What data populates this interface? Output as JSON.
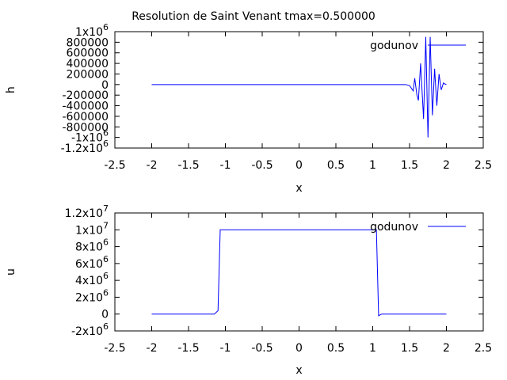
{
  "chart_data": [
    {
      "type": "line",
      "title": "Resolution de Saint Venant tmax=0.500000",
      "xlabel": "x",
      "ylabel": "h",
      "xlim": [
        -2.5,
        2.5
      ],
      "ylim": [
        -1200000,
        1000000
      ],
      "x_ticks": [
        -2.5,
        -2,
        -1.5,
        -1,
        -0.5,
        0,
        0.5,
        1,
        1.5,
        2,
        2.5
      ],
      "x_tick_labels": [
        "-2.5",
        "-2",
        "-1.5",
        "-1",
        "-0.5",
        "0",
        "0.5",
        "1",
        "1.5",
        "2",
        "2.5"
      ],
      "y_ticks": [
        -1200000,
        -1000000,
        -800000,
        -600000,
        -400000,
        -200000,
        0,
        200000,
        400000,
        600000,
        800000,
        1000000
      ],
      "y_tick_labels": [
        {
          "base": "-1.2x10",
          "exp": "6"
        },
        {
          "base": "-1x10",
          "exp": "6"
        },
        {
          "base": "-800000",
          "exp": ""
        },
        {
          "base": "-600000",
          "exp": ""
        },
        {
          "base": "-400000",
          "exp": ""
        },
        {
          "base": "-200000",
          "exp": ""
        },
        {
          "base": "0",
          "exp": ""
        },
        {
          "base": "200000",
          "exp": ""
        },
        {
          "base": "400000",
          "exp": ""
        },
        {
          "base": "600000",
          "exp": ""
        },
        {
          "base": "800000",
          "exp": ""
        },
        {
          "base": "1x10",
          "exp": "6"
        }
      ],
      "legend": "top-right",
      "grid": false,
      "series": [
        {
          "name": "godunov",
          "color": "#0000ff",
          "points": [
            [
              -2.0,
              0
            ],
            [
              1.3,
              0
            ],
            [
              1.45,
              0
            ],
            [
              1.5,
              -20000
            ],
            [
              1.55,
              -120000
            ],
            [
              1.57,
              120000
            ],
            [
              1.6,
              -200000
            ],
            [
              1.62,
              -300000
            ],
            [
              1.65,
              400000
            ],
            [
              1.69,
              -650000
            ],
            [
              1.72,
              900000
            ],
            [
              1.75,
              -1000000
            ],
            [
              1.78,
              900000
            ],
            [
              1.81,
              -580000
            ],
            [
              1.84,
              300000
            ],
            [
              1.87,
              -400000
            ],
            [
              1.9,
              200000
            ],
            [
              1.93,
              -100000
            ],
            [
              1.96,
              30000
            ],
            [
              1.98,
              10000
            ],
            [
              2.0,
              0
            ]
          ]
        }
      ]
    },
    {
      "type": "line",
      "title": "",
      "xlabel": "x",
      "ylabel": "u",
      "xlim": [
        -2.5,
        2.5
      ],
      "ylim": [
        -2000000,
        12000000
      ],
      "x_ticks": [
        -2.5,
        -2,
        -1.5,
        -1,
        -0.5,
        0,
        0.5,
        1,
        1.5,
        2,
        2.5
      ],
      "x_tick_labels": [
        "-2.5",
        "-2",
        "-1.5",
        "-1",
        "-0.5",
        "0",
        "0.5",
        "1",
        "1.5",
        "2",
        "2.5"
      ],
      "y_ticks": [
        -2000000,
        0,
        2000000,
        4000000,
        6000000,
        8000000,
        10000000,
        12000000
      ],
      "y_tick_labels": [
        {
          "base": "-2x10",
          "exp": "6"
        },
        {
          "base": "0",
          "exp": ""
        },
        {
          "base": "2x10",
          "exp": "6"
        },
        {
          "base": "4x10",
          "exp": "6"
        },
        {
          "base": "6x10",
          "exp": "6"
        },
        {
          "base": "8x10",
          "exp": "6"
        },
        {
          "base": "1x10",
          "exp": "7"
        },
        {
          "base": "1.2x10",
          "exp": "7"
        }
      ],
      "legend": "top-right",
      "grid": false,
      "series": [
        {
          "name": "godunov",
          "color": "#0000ff",
          "points": [
            [
              -2.0,
              0
            ],
            [
              -1.15,
              0
            ],
            [
              -1.1,
              400000
            ],
            [
              -1.07,
              10000000
            ],
            [
              1.05,
              10000000
            ],
            [
              1.08,
              -200000
            ],
            [
              1.12,
              0
            ],
            [
              2.0,
              0
            ]
          ]
        }
      ]
    }
  ]
}
